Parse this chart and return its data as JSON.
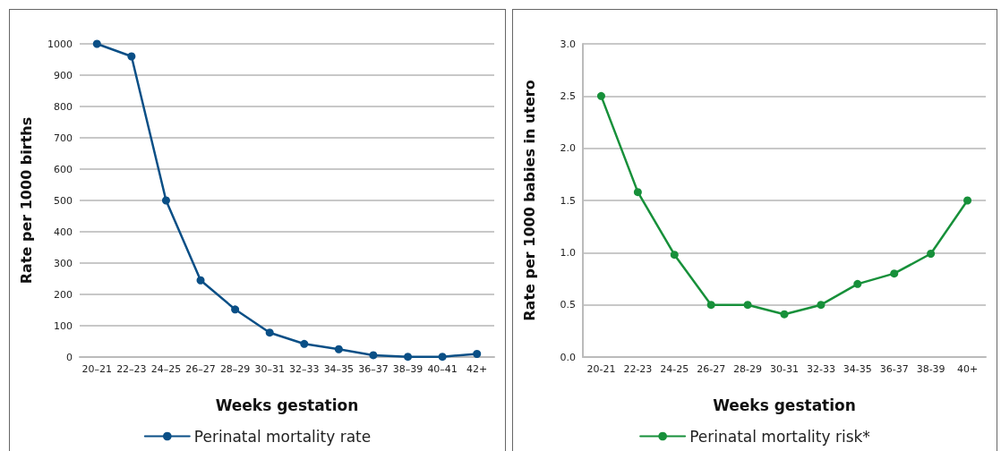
{
  "chart_data": [
    {
      "type": "line",
      "categories": [
        "20–21",
        "22–23",
        "24–25",
        "26–27",
        "28–29",
        "30–31",
        "32–33",
        "34–35",
        "36–37",
        "38–39",
        "40–41",
        "42+"
      ],
      "series": [
        {
          "name": "Perinatal mortality rate",
          "color": "#0a4f86",
          "values": [
            1000,
            960,
            500,
            245,
            152,
            78,
            42,
            25,
            6,
            1,
            1,
            10
          ]
        }
      ],
      "xlabel": "Weeks gestation",
      "ylabel": "Rate per 1000 births",
      "ylim": [
        0,
        1000
      ],
      "yticks": [
        0,
        100,
        200,
        300,
        400,
        500,
        600,
        700,
        800,
        900,
        1000
      ],
      "grid": "y",
      "legend": "bottom",
      "marker": "circle",
      "line_style": "solid"
    },
    {
      "type": "line",
      "categories": [
        "20-21",
        "22-23",
        "24-25",
        "26-27",
        "28-29",
        "30-31",
        "32-33",
        "34-35",
        "36-37",
        "38-39",
        "40+"
      ],
      "series": [
        {
          "name": "Perinatal mortality risk*",
          "color": "#17903a",
          "values": [
            2.5,
            1.58,
            0.98,
            0.5,
            0.5,
            0.41,
            0.5,
            0.7,
            0.8,
            0.99,
            1.5
          ]
        }
      ],
      "xlabel": "Weeks gestation",
      "ylabel": "Rate per 1000 babies in utero",
      "ylim": [
        0,
        3
      ],
      "yticks": [
        {
          "value": 0,
          "label": "0.0"
        },
        {
          "value": 0.5,
          "label": "0.5"
        },
        {
          "value": 1,
          "label": "1.0"
        },
        {
          "value": 1.5,
          "label": "1.5"
        },
        {
          "value": 2,
          "label": "2.0"
        },
        {
          "value": 2.5,
          "label": "2.5"
        },
        {
          "value": 3,
          "label": "3.0"
        }
      ],
      "grid": "y",
      "legend": "bottom",
      "marker": "circle",
      "line_style": "solid"
    }
  ]
}
